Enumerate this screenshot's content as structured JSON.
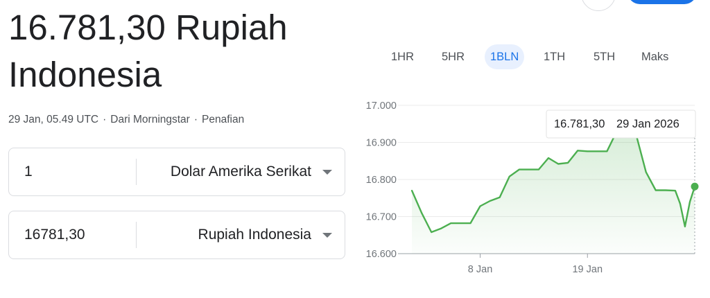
{
  "header": {
    "value_line": "16.781,30 Rupiah",
    "currency_line": "Indonesia",
    "timestamp": "29 Jan, 05.49 UTC",
    "source": "Dari Morningstar",
    "disclaimer": "Penafian",
    "separator": "·"
  },
  "converter": {
    "from": {
      "amount": "1",
      "currency": "Dolar Amerika Serikat"
    },
    "to": {
      "amount": "16781,30",
      "currency": "Rupiah Indonesia"
    }
  },
  "ranges": {
    "tabs": [
      "1HR",
      "5HR",
      "1BLN",
      "1TH",
      "5TH",
      "Maks"
    ],
    "active": "1BLN"
  },
  "tooltip": {
    "value": "16.781,30",
    "date": "29 Jan 2026"
  },
  "colors": {
    "line": "#4caf50",
    "accent": "#1a73e8"
  },
  "chart_data": {
    "type": "area",
    "ylim": [
      16600,
      17000
    ],
    "yticks": [
      16600,
      16700,
      16800,
      16900,
      17000
    ],
    "ytick_labels": [
      "16.600",
      "16.700",
      "16.800",
      "16.900",
      "17.000"
    ],
    "xlim": [
      0,
      29
    ],
    "xticks": [
      {
        "x": 8,
        "label": "8 Jan"
      },
      {
        "x": 19,
        "label": "19 Jan"
      }
    ],
    "grid": true,
    "points": [
      {
        "x": 1,
        "y": 16770
      },
      {
        "x": 2,
        "y": 16710
      },
      {
        "x": 3,
        "y": 16658
      },
      {
        "x": 4,
        "y": 16668
      },
      {
        "x": 5,
        "y": 16682
      },
      {
        "x": 6,
        "y": 16682
      },
      {
        "x": 7,
        "y": 16682
      },
      {
        "x": 8,
        "y": 16728
      },
      {
        "x": 9,
        "y": 16742
      },
      {
        "x": 10,
        "y": 16752
      },
      {
        "x": 11,
        "y": 16808
      },
      {
        "x": 12,
        "y": 16827
      },
      {
        "x": 13,
        "y": 16827
      },
      {
        "x": 14,
        "y": 16827
      },
      {
        "x": 15,
        "y": 16858
      },
      {
        "x": 16,
        "y": 16842
      },
      {
        "x": 17,
        "y": 16845
      },
      {
        "x": 18,
        "y": 16878
      },
      {
        "x": 19,
        "y": 16876
      },
      {
        "x": 20,
        "y": 16876
      },
      {
        "x": 21,
        "y": 16876
      },
      {
        "x": 22,
        "y": 16930
      },
      {
        "x": 23,
        "y": 16935
      },
      {
        "x": 24,
        "y": 16920
      },
      {
        "x": 25,
        "y": 16820
      },
      {
        "x": 26,
        "y": 16771
      },
      {
        "x": 27,
        "y": 16771
      },
      {
        "x": 28,
        "y": 16770
      },
      {
        "x": 28.5,
        "y": 16735
      },
      {
        "x": 29,
        "y": 16673
      },
      {
        "x": 29.5,
        "y": 16740
      },
      {
        "x": 30,
        "y": 16781
      }
    ]
  }
}
